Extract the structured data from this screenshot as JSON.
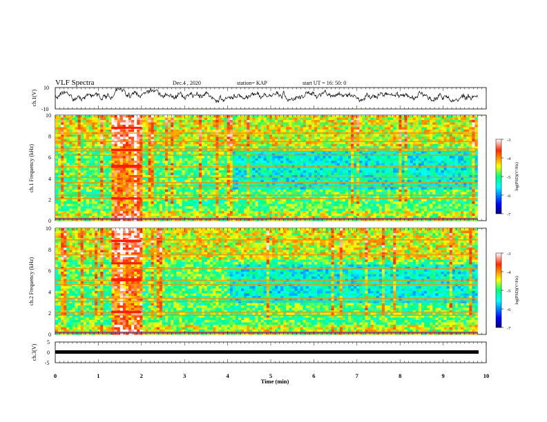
{
  "header": {
    "title": "VLF Spectra",
    "date": "Dec.4 , 2020",
    "station": "station= KAP",
    "start": "start UT = 16: 50: 0"
  },
  "colors": {
    "waveform": "#000000",
    "axes": "#000000",
    "colormap": [
      "#00007f",
      "#0000ff",
      "#00ffff",
      "#00ff7f",
      "#ffff00",
      "#ff7f00",
      "#ff0000",
      "#7f0000"
    ]
  },
  "chart_data": [
    {
      "id": "ch1-waveform",
      "type": "line",
      "ylabel": "ch.1(V)",
      "ylim": [
        -10,
        10
      ],
      "yticks": [
        "10",
        "-10"
      ],
      "xlim": [
        0,
        10
      ],
      "description_of_trace": "noisy time series oscillating mostly between about -3 and 7 V"
    },
    {
      "id": "ch1-spectrogram",
      "type": "heatmap",
      "ylabel": "ch.1\nFrequency (kHz)",
      "ylim": [
        0,
        10
      ],
      "yticks": [
        "0",
        "2",
        "4",
        "6",
        "8",
        "10"
      ],
      "xlim": [
        0,
        10
      ],
      "colorbar": {
        "label": "log(PSD)(V²/Hz)",
        "range": [
          -7,
          -3
        ],
        "ticks": [
          "-3",
          "-4",
          "-5",
          "-6",
          "-7"
        ]
      },
      "data_end_min": 9.8,
      "intense_segment_min": [
        1.3,
        2.0
      ],
      "narrowband_lines_khz": [
        0.2,
        2.1,
        2.4,
        3.3,
        3.6,
        4.1,
        5.1,
        6.2,
        6.6,
        6.8,
        7.5,
        8.3
      ]
    },
    {
      "id": "ch2-spectrogram",
      "type": "heatmap",
      "ylabel": "ch.2\nFrequency (kHz)",
      "ylim": [
        0,
        10
      ],
      "yticks": [
        "0",
        "2",
        "4",
        "6",
        "8",
        "10"
      ],
      "xlim": [
        0,
        10
      ],
      "colorbar": {
        "label": "log(PSD)(V²/Hz)",
        "range": [
          -7,
          -3
        ],
        "ticks": [
          "-3",
          "-4",
          "-5",
          "-6",
          "-7"
        ]
      },
      "data_end_min": 9.8,
      "intense_segment_min": [
        1.3,
        2.0
      ],
      "narrowband_lines_khz": [
        0.2,
        1.8,
        2.1,
        3.1,
        3.4,
        4.7,
        5.1,
        6.2,
        7.5,
        8.9
      ]
    },
    {
      "id": "ch3-waveform",
      "type": "line",
      "ylabel": "ch.3(V)",
      "ylim": [
        -5,
        5
      ],
      "yticks": [
        "5",
        "0",
        "-5"
      ],
      "xlim": [
        0,
        10
      ],
      "description_of_trace": "flat thick trace near -1 V"
    }
  ],
  "xaxis": {
    "label": "Time (min)",
    "ticks": [
      "0",
      "1",
      "2",
      "3",
      "4",
      "5",
      "6",
      "7",
      "8",
      "9",
      "10"
    ]
  }
}
